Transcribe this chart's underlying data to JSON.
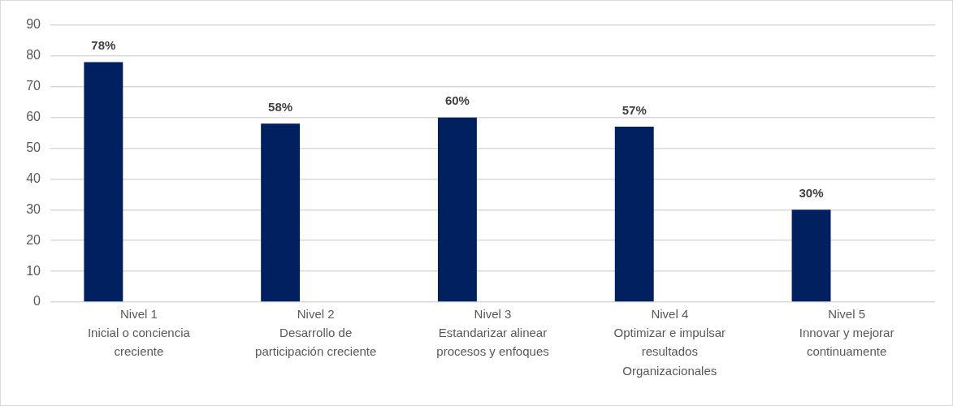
{
  "chart_data": {
    "type": "bar",
    "categories": [
      "Nivel 1\nInicial o conciencia\ncreciente",
      "Nivel 2\nDesarrollo de\nparticipación creciente",
      "Nivel 3\nEstandarizar alinear\nprocesos y enfoques",
      "Nivel 4\nOptimizar e impulsar\nresultados\nOrganizacionales",
      "Nivel 5\nInnovar y mejorar\ncontinuamente"
    ],
    "values": [
      78,
      58,
      60,
      57,
      30
    ],
    "color": "#002060",
    "value_labels": [
      "78%",
      "58%",
      "60%",
      "57%",
      "30%"
    ],
    "ylim": [
      0,
      90
    ],
    "yticks": [
      0,
      10,
      20,
      30,
      40,
      50,
      60,
      70,
      80,
      90
    ],
    "grid": "y"
  }
}
